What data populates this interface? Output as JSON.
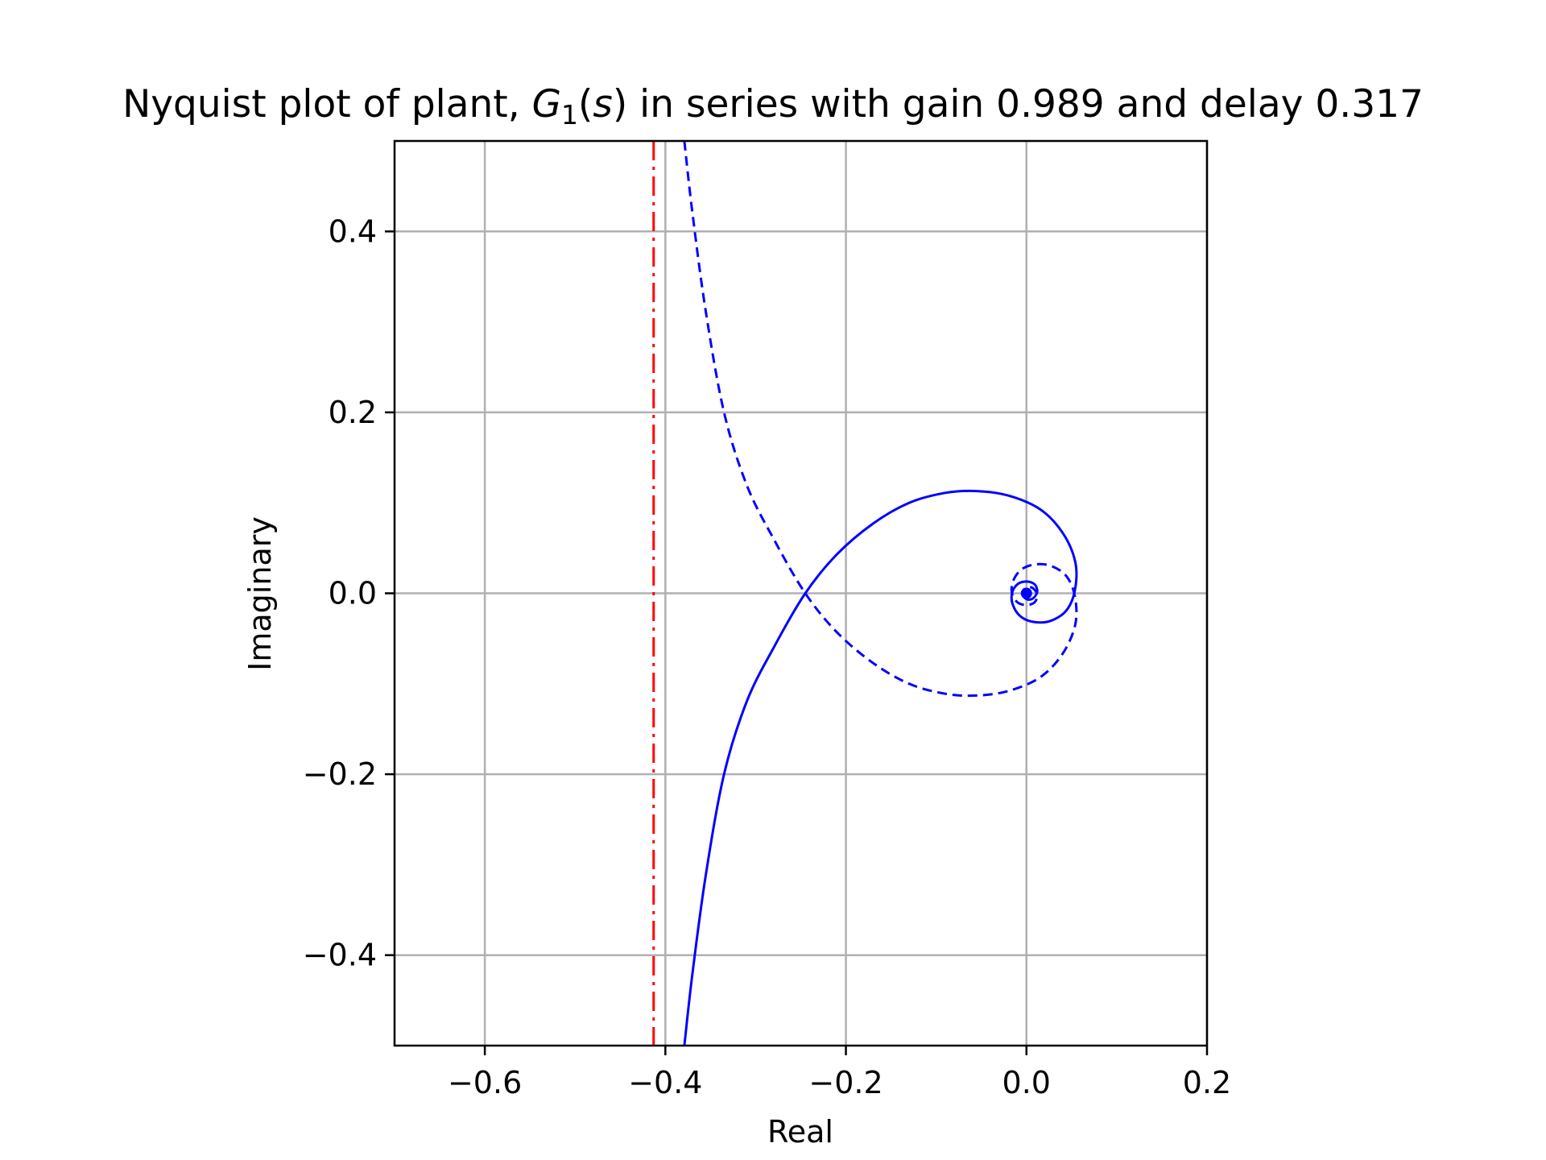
{
  "chart_data": {
    "type": "line",
    "title": {
      "prefix": "Nyquist plot of plant, ",
      "symbol": "G",
      "subscript": "1",
      "argument": "s",
      "suffix": " in series with gain 0.989 and delay 0.317"
    },
    "xlabel": "Real",
    "ylabel": "Imaginary",
    "xlim": [
      -0.7,
      0.2
    ],
    "ylim": [
      -0.5,
      0.5
    ],
    "grid": true,
    "xticks": [
      -0.6,
      -0.4,
      -0.2,
      0.0,
      0.2
    ],
    "xtick_labels": [
      "−0.6",
      "−0.4",
      "−0.2",
      "0.0",
      "0.2"
    ],
    "yticks": [
      -0.4,
      -0.2,
      0.0,
      0.2,
      0.4
    ],
    "ytick_labels": [
      "−0.4",
      "−0.2",
      "0.0",
      "0.2",
      "0.4"
    ],
    "colors": {
      "nyquist": "#0000ff",
      "bound": "#ff0000"
    },
    "series": [
      {
        "role": "positive-frequency",
        "style": "solid",
        "points": [
          [
            -0.379,
            -0.5
          ],
          [
            -0.37,
            -0.42
          ],
          [
            -0.355,
            -0.31
          ],
          [
            -0.335,
            -0.2
          ],
          [
            -0.31,
            -0.12
          ],
          [
            -0.28,
            -0.06
          ],
          [
            -0.245,
            0.0
          ],
          [
            -0.21,
            0.043
          ],
          [
            -0.17,
            0.077
          ],
          [
            -0.13,
            0.1
          ],
          [
            -0.09,
            0.111
          ],
          [
            -0.055,
            0.113
          ],
          [
            -0.02,
            0.108
          ],
          [
            0.015,
            0.093
          ],
          [
            0.04,
            0.067
          ],
          [
            0.054,
            0.035
          ],
          [
            0.054,
            0.005
          ],
          [
            0.045,
            -0.018
          ],
          [
            0.028,
            -0.03
          ],
          [
            0.01,
            -0.032
          ],
          [
            -0.006,
            -0.026
          ],
          [
            -0.015,
            -0.013
          ],
          [
            -0.016,
            0.0
          ],
          [
            -0.01,
            0.01
          ],
          [
            0.0,
            0.013
          ],
          [
            0.009,
            0.01
          ],
          [
            0.012,
            0.002
          ],
          [
            0.008,
            -0.005
          ],
          [
            0.002,
            -0.007
          ],
          [
            -0.003,
            -0.004
          ],
          [
            -0.004,
            0.0
          ],
          [
            -0.001,
            0.003
          ],
          [
            0.002,
            0.002
          ],
          [
            0.002,
            0.0
          ],
          [
            0.0,
            0.0
          ]
        ]
      },
      {
        "role": "negative-frequency",
        "style": "dashed",
        "points": [
          [
            -0.379,
            0.5
          ],
          [
            -0.37,
            0.42
          ],
          [
            -0.355,
            0.31
          ],
          [
            -0.335,
            0.2
          ],
          [
            -0.31,
            0.12
          ],
          [
            -0.28,
            0.06
          ],
          [
            -0.245,
            0.0
          ],
          [
            -0.21,
            -0.043
          ],
          [
            -0.17,
            -0.077
          ],
          [
            -0.13,
            -0.1
          ],
          [
            -0.09,
            -0.111
          ],
          [
            -0.055,
            -0.113
          ],
          [
            -0.02,
            -0.108
          ],
          [
            0.015,
            -0.093
          ],
          [
            0.04,
            -0.067
          ],
          [
            0.054,
            -0.035
          ],
          [
            0.054,
            -0.005
          ],
          [
            0.045,
            0.018
          ],
          [
            0.028,
            0.03
          ],
          [
            0.01,
            0.032
          ],
          [
            -0.006,
            0.026
          ],
          [
            -0.015,
            0.013
          ],
          [
            -0.016,
            0.0
          ],
          [
            -0.01,
            -0.01
          ],
          [
            0.0,
            -0.013
          ],
          [
            0.009,
            -0.01
          ],
          [
            0.012,
            -0.002
          ],
          [
            0.008,
            0.005
          ],
          [
            0.002,
            0.007
          ],
          [
            -0.003,
            0.004
          ],
          [
            -0.004,
            0.0
          ],
          [
            -0.001,
            -0.003
          ],
          [
            0.002,
            -0.002
          ],
          [
            0.002,
            0.0
          ],
          [
            0.0,
            0.0
          ]
        ]
      }
    ],
    "vertical_line": {
      "x": -0.413,
      "style": "dash-dot"
    },
    "end_marker": {
      "x": 0.0,
      "y": 0.0
    }
  }
}
